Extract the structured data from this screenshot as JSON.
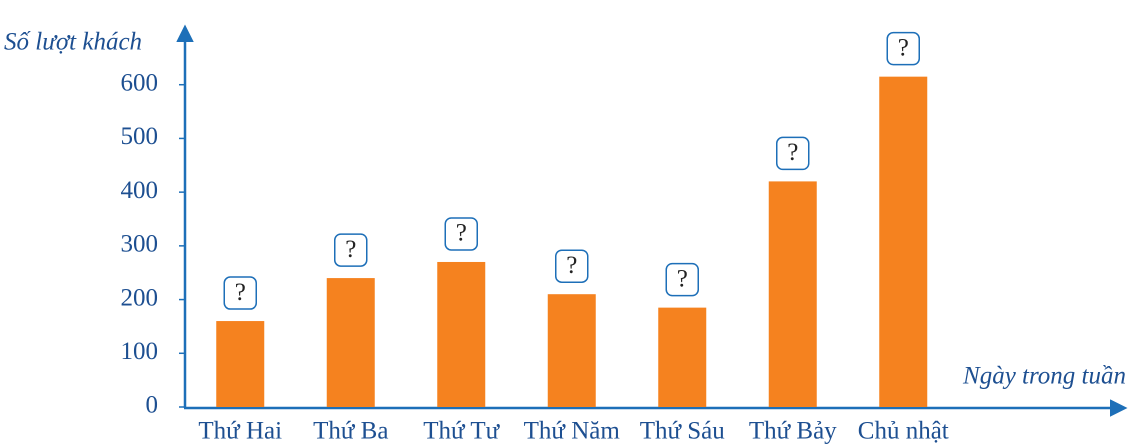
{
  "chart_data": {
    "type": "bar",
    "x_label": "Ngày trong tuần",
    "y_label": "Số lượt khách",
    "categories": [
      "Thứ Hai",
      "Thứ Ba",
      "Thứ Tư",
      "Thứ Năm",
      "Thứ Sáu",
      "Thứ Bảy",
      "Chủ nhật"
    ],
    "values": [
      160,
      240,
      270,
      210,
      185,
      420,
      615
    ],
    "bar_labels": [
      "?",
      "?",
      "?",
      "?",
      "?",
      "?",
      "?"
    ],
    "color": "#f5821f",
    "ylim": [
      0,
      700
    ],
    "yticks": [
      0,
      100,
      200,
      300,
      400,
      500,
      600
    ],
    "grid": false
  }
}
